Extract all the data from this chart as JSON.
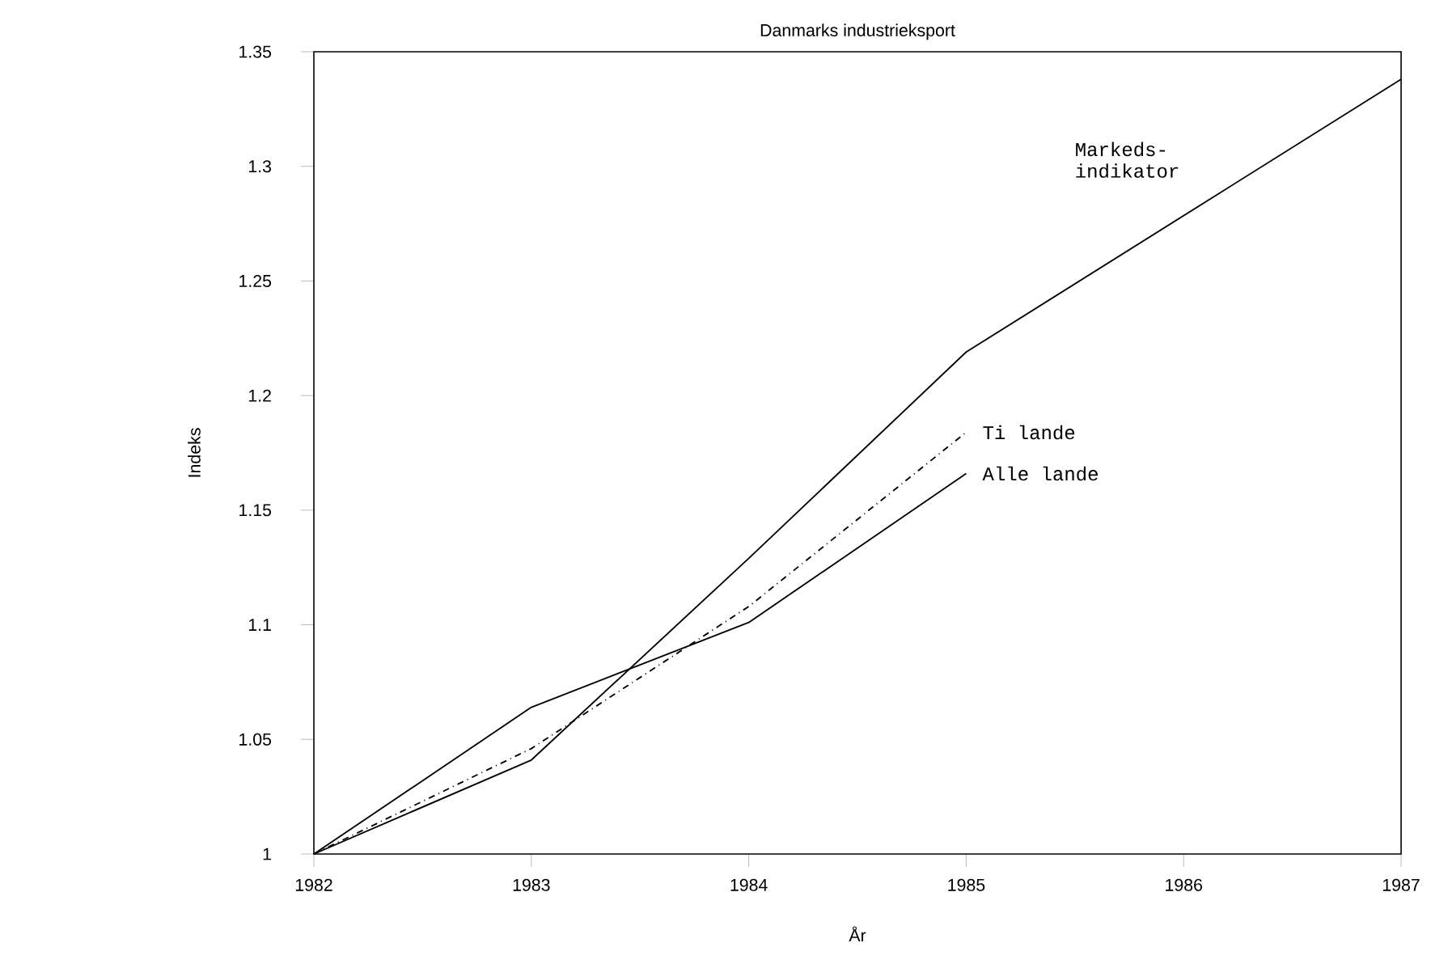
{
  "chart_data": {
    "type": "line",
    "title": "Danmarks industrieksport",
    "xlabel": "År",
    "ylabel": "Indeks",
    "xlim": [
      1982,
      1987
    ],
    "xticks": [
      1982,
      1983,
      1984,
      1985,
      1986,
      1987
    ],
    "ylim": [
      1,
      1.35
    ],
    "yticks": [
      1,
      1.05,
      1.1,
      1.15,
      1.2,
      1.25,
      1.3,
      1.35
    ],
    "grid": false,
    "marker": "none",
    "series": [
      {
        "name": "Markeds-indikator",
        "color": "#000000",
        "line_style": "solid",
        "x": [
          1982,
          1983,
          1984,
          1985,
          1987
        ],
        "values": [
          1,
          1.041,
          1.129,
          1.219,
          1.338
        ]
      },
      {
        "name": "Ti lande",
        "color": "#000000",
        "line_style": "dashed",
        "x": [
          1982,
          1983,
          1984,
          1985
        ],
        "values": [
          1,
          1.046,
          1.108,
          1.184
        ]
      },
      {
        "name": "Alle lande",
        "color": "#000000",
        "line_style": "solid",
        "x": [
          1982,
          1983,
          1984,
          1985
        ],
        "values": [
          1,
          1.064,
          1.101,
          1.166
        ]
      }
    ]
  }
}
